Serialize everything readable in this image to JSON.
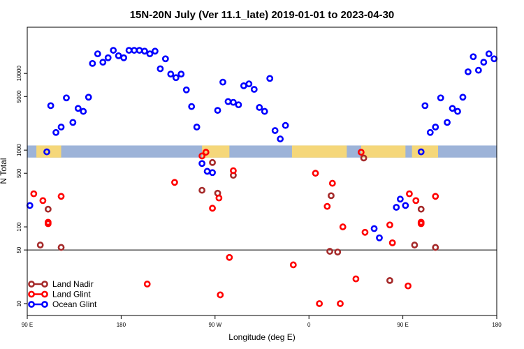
{
  "chart_data": {
    "type": "scatter",
    "title": "15N-20N July (Ver 11.1_late)   2019-01-01 to 2023-04-30",
    "xlabel": "Longitude (deg E)",
    "ylabel": "N Total",
    "x_range_display": [
      0,
      360
    ],
    "y_scale": "log",
    "ylim": [
      7,
      40000
    ],
    "x_ticks": [
      {
        "pos": 0,
        "label": "90 E"
      },
      {
        "pos": 72,
        "label": "180"
      },
      {
        "pos": 144,
        "label": "90 W"
      },
      {
        "pos": 216,
        "label": "0"
      },
      {
        "pos": 288,
        "label": "90 E"
      },
      {
        "pos": 360,
        "label": "180"
      }
    ],
    "y_ticks": [
      10,
      50,
      100,
      500,
      1000,
      5000,
      10000
    ],
    "reference_line_y": 50,
    "land_mask_band": {
      "y_range": [
        800,
        1150
      ],
      "land_segments": [
        [
          7,
          26
        ],
        [
          134,
          155
        ],
        [
          203,
          245
        ],
        [
          256,
          290
        ],
        [
          295,
          315
        ]
      ]
    },
    "legend_position": "bottom-left",
    "series": [
      {
        "name": "Land Nadir",
        "color": "#a52a2a",
        "points": [
          [
            10,
            58
          ],
          [
            16,
            170
          ],
          [
            26,
            54
          ],
          [
            134,
            300
          ],
          [
            142,
            690
          ],
          [
            146,
            275
          ],
          [
            158,
            470
          ],
          [
            232,
            48
          ],
          [
            233,
            255
          ],
          [
            238,
            47
          ],
          [
            258,
            790
          ],
          [
            278,
            20
          ],
          [
            297,
            58
          ],
          [
            302,
            170
          ],
          [
            313,
            54
          ]
        ]
      },
      {
        "name": "Land Glint",
        "color": "#ff0000",
        "points": [
          [
            5,
            270
          ],
          [
            12,
            220
          ],
          [
            16,
            115
          ],
          [
            16,
            110
          ],
          [
            26,
            250
          ],
          [
            92,
            18
          ],
          [
            113,
            380
          ],
          [
            134,
            840
          ],
          [
            137,
            940
          ],
          [
            142,
            175
          ],
          [
            147,
            238
          ],
          [
            148,
            13
          ],
          [
            155,
            40
          ],
          [
            158,
            540
          ],
          [
            204,
            32
          ],
          [
            221,
            500
          ],
          [
            224,
            10
          ],
          [
            230,
            185
          ],
          [
            234,
            370
          ],
          [
            240,
            10
          ],
          [
            242,
            100
          ],
          [
            252,
            21
          ],
          [
            256,
            940
          ],
          [
            259,
            85
          ],
          [
            278,
            106
          ],
          [
            280,
            62
          ],
          [
            292,
            17
          ],
          [
            293,
            270
          ],
          [
            298,
            220
          ],
          [
            302,
            115
          ],
          [
            302,
            110
          ],
          [
            313,
            250
          ]
        ]
      },
      {
        "name": "Ocean Glint",
        "color": "#0000ff",
        "points": [
          [
            2,
            190
          ],
          [
            15,
            950
          ],
          [
            18,
            3800
          ],
          [
            22,
            1700
          ],
          [
            26,
            2000
          ],
          [
            30,
            4800
          ],
          [
            35,
            2300
          ],
          [
            39,
            3500
          ],
          [
            43,
            3200
          ],
          [
            47,
            4900
          ],
          [
            50,
            13500
          ],
          [
            54,
            18000
          ],
          [
            58,
            14000
          ],
          [
            62,
            16000
          ],
          [
            66,
            20000
          ],
          [
            70,
            17000
          ],
          [
            74,
            16000
          ],
          [
            78,
            20000
          ],
          [
            82,
            20000
          ],
          [
            86,
            20000
          ],
          [
            90,
            19500
          ],
          [
            94,
            18000
          ],
          [
            98,
            19500
          ],
          [
            102,
            11500
          ],
          [
            106,
            15500
          ],
          [
            110,
            9800
          ],
          [
            114,
            8800
          ],
          [
            118,
            9800
          ],
          [
            122,
            6100
          ],
          [
            126,
            3700
          ],
          [
            130,
            2000
          ],
          [
            134,
            670
          ],
          [
            138,
            530
          ],
          [
            142,
            510
          ],
          [
            146,
            3300
          ],
          [
            150,
            7700
          ],
          [
            154,
            4300
          ],
          [
            158,
            4200
          ],
          [
            162,
            3900
          ],
          [
            166,
            6900
          ],
          [
            170,
            7300
          ],
          [
            174,
            6200
          ],
          [
            178,
            3600
          ],
          [
            182,
            3200
          ],
          [
            186,
            8600
          ],
          [
            190,
            1800
          ],
          [
            194,
            1400
          ],
          [
            198,
            2100
          ],
          [
            266,
            95
          ],
          [
            270,
            72
          ],
          [
            283,
            180
          ],
          [
            286,
            230
          ],
          [
            290,
            190
          ],
          [
            302,
            950
          ],
          [
            305,
            3800
          ],
          [
            309,
            1700
          ],
          [
            313,
            2000
          ],
          [
            317,
            4800
          ],
          [
            322,
            2300
          ],
          [
            326,
            3500
          ],
          [
            330,
            3200
          ],
          [
            334,
            4900
          ],
          [
            338,
            10500
          ],
          [
            342,
            16500
          ],
          [
            346,
            11000
          ],
          [
            350,
            14000
          ],
          [
            354,
            18000
          ],
          [
            358,
            15500
          ]
        ]
      }
    ]
  }
}
